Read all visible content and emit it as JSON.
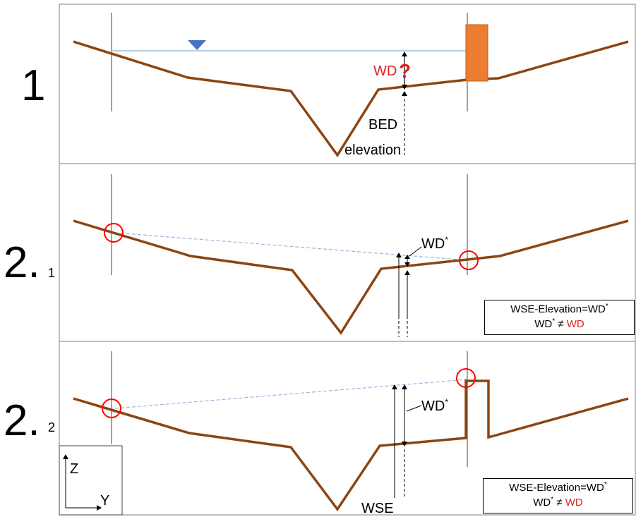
{
  "panels": [
    {
      "id": "panel-1",
      "number": "1",
      "wd_label": "WD",
      "question_mark": "?",
      "bed_label_line1": "BED",
      "bed_label_line2": "elevation"
    },
    {
      "id": "panel-2-1",
      "number": "2.",
      "subscript": "1",
      "wd_star_label": "WD",
      "star": "*",
      "note_line1": "WSE-Elevation=WD",
      "note_line2_left": "WD",
      "note_neq": " ≠ ",
      "note_line2_right": "WD"
    },
    {
      "id": "panel-2-2",
      "number": "2.",
      "subscript": "2",
      "wd_star_label": "WD",
      "star": "*",
      "wse_label": "WSE",
      "note_line1": "WSE-Elevation=WD",
      "note_line2_left": "WD",
      "note_neq": " ≠ ",
      "note_line2_right": "WD"
    }
  ],
  "axes": {
    "z_label": "Z",
    "y_label": "Y"
  },
  "colors": {
    "terrain": "#8b4513",
    "water_line": "#b8cce4",
    "water_marker": "#4472c4",
    "structure": "#ed7d31",
    "highlight": "#ff0000",
    "accent_text": "#e0201b"
  }
}
